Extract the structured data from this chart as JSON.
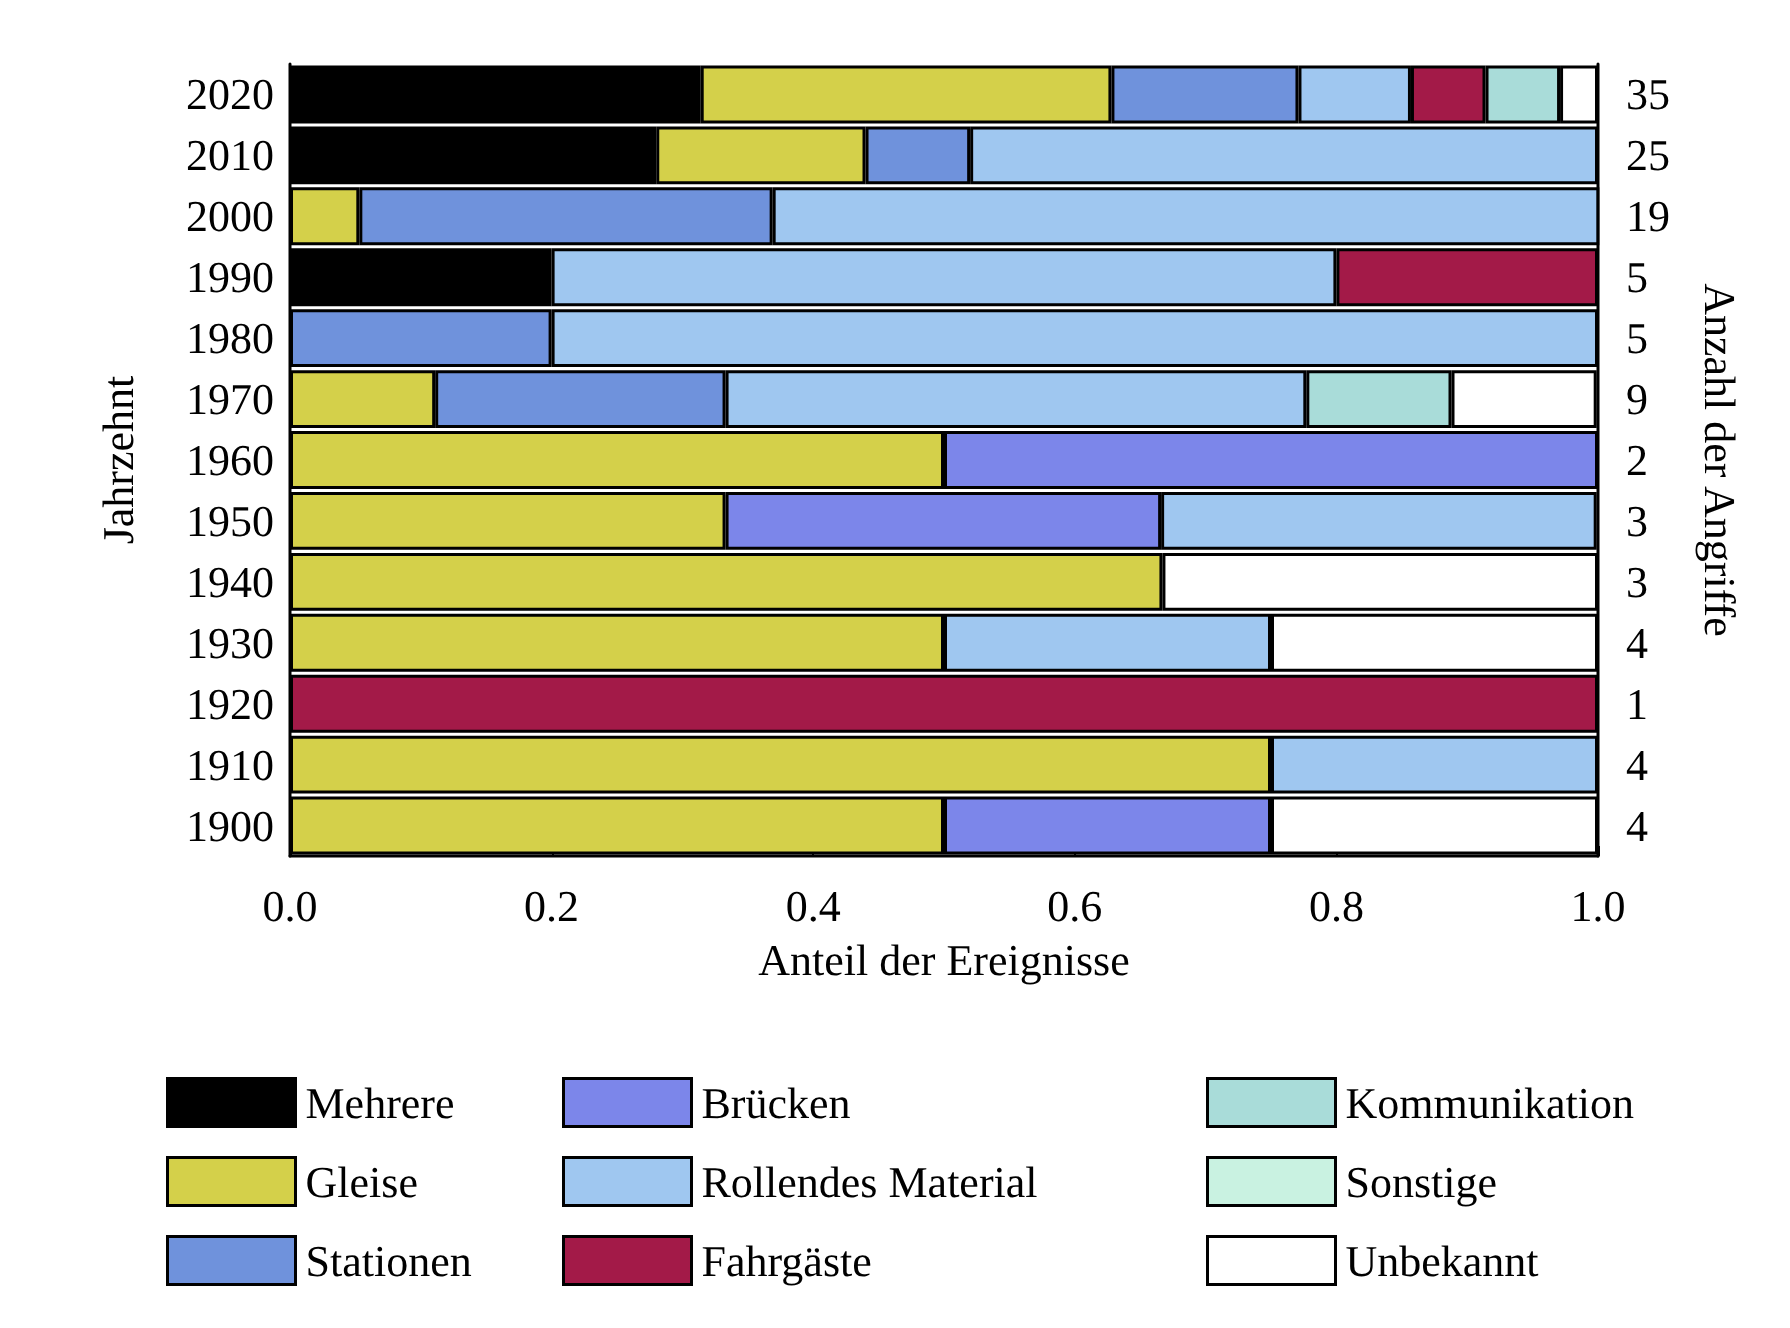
{
  "chart_data": {
    "type": "bar",
    "orientation": "horizontal",
    "stacked": true,
    "xlabel": "Anteil der Ereignisse",
    "ylabel": "Jahrzehnt",
    "y2label": "Anzahl der Angriffe",
    "categories": [
      "2020",
      "2010",
      "2000",
      "1990",
      "1980",
      "1970",
      "1960",
      "1950",
      "1940",
      "1930",
      "1920",
      "1910",
      "1900"
    ],
    "y2_categories": [
      "35",
      "25",
      "19",
      "5",
      "5",
      "9",
      "2",
      "3",
      "3",
      "4",
      "1",
      "4",
      "4"
    ],
    "xlim": [
      0,
      1
    ],
    "xticks": [
      {
        "value": 0,
        "label": "0.0"
      },
      {
        "value": 0.2,
        "label": "0.2"
      },
      {
        "value": 0.4,
        "label": "0.4"
      },
      {
        "value": 0.6,
        "label": "0.6"
      },
      {
        "value": 0.8,
        "label": "0.8"
      },
      {
        "value": 1,
        "label": "1.0"
      }
    ],
    "grid": false,
    "legend": "bottom",
    "series": [
      {
        "name": "Mehrere",
        "color": "#000000",
        "values": [
          0.314,
          0.28,
          null,
          0.2,
          null,
          null,
          null,
          null,
          null,
          null,
          null,
          null,
          null
        ]
      },
      {
        "name": "Gleise",
        "color": "#d4d04a",
        "values": [
          0.314,
          0.16,
          0.053,
          null,
          null,
          0.111,
          0.5,
          0.333,
          0.667,
          0.5,
          null,
          0.75,
          0.5
        ]
      },
      {
        "name": "Stationen",
        "color": "#6f92dc",
        "values": [
          0.143,
          0.08,
          0.316,
          null,
          0.2,
          0.222,
          null,
          null,
          null,
          null,
          null,
          null,
          null
        ]
      },
      {
        "name": "Brücken",
        "color": "#7c86ea",
        "values": [
          null,
          null,
          null,
          null,
          null,
          null,
          0.5,
          0.333,
          null,
          null,
          null,
          null,
          0.25
        ]
      },
      {
        "name": "Rollendes Material",
        "color": "#9fc7f0",
        "values": [
          0.086,
          0.48,
          0.632,
          0.6,
          0.8,
          0.444,
          null,
          0.333,
          null,
          0.25,
          null,
          0.25,
          null
        ]
      },
      {
        "name": "Fahrgäste",
        "color": "#a31a48",
        "values": [
          0.057,
          null,
          null,
          0.2,
          null,
          null,
          null,
          null,
          null,
          null,
          1,
          null,
          null
        ]
      },
      {
        "name": "Kommunikation",
        "color": "#a9dcd9",
        "values": [
          0.057,
          null,
          null,
          null,
          null,
          0.111,
          null,
          null,
          null,
          null,
          null,
          null,
          null
        ]
      },
      {
        "name": "Sonstige",
        "color": "#c9f2e1",
        "values": [
          null,
          null,
          null,
          null,
          null,
          null,
          null,
          null,
          null,
          null,
          null,
          null,
          null
        ]
      },
      {
        "name": "Unbekannt",
        "color": "#ffffff",
        "values": [
          0.029,
          null,
          null,
          null,
          null,
          0.111,
          null,
          null,
          0.333,
          0.25,
          null,
          null,
          0.25
        ]
      }
    ]
  }
}
